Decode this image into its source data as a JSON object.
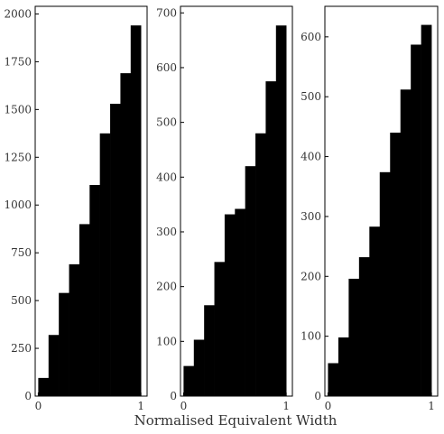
{
  "chart_data": [
    {
      "type": "bar",
      "bin_edges": [
        0,
        0.1,
        0.2,
        0.3,
        0.4,
        0.5,
        0.6,
        0.7,
        0.8,
        0.9,
        1.0
      ],
      "values": [
        95,
        320,
        540,
        690,
        900,
        1105,
        1375,
        1530,
        1690,
        1940
      ],
      "ylim": [
        0,
        2040
      ],
      "xlim": [
        -0.03,
        1.06
      ],
      "yticks": [
        0,
        250,
        500,
        750,
        1000,
        1250,
        1500,
        1750,
        2000
      ],
      "xticks": [
        0,
        1
      ],
      "bar_color": "#000000"
    },
    {
      "type": "bar",
      "bin_edges": [
        0,
        0.1,
        0.2,
        0.3,
        0.4,
        0.5,
        0.6,
        0.7,
        0.8,
        0.9,
        1.0
      ],
      "values": [
        55,
        103,
        166,
        245,
        332,
        342,
        420,
        480,
        575,
        677
      ],
      "ylim": [
        0,
        712
      ],
      "xlim": [
        -0.03,
        1.06
      ],
      "yticks": [
        0,
        100,
        200,
        300,
        400,
        500,
        600,
        700
      ],
      "xticks": [
        0,
        1
      ],
      "bar_color": "#000000"
    },
    {
      "type": "bar",
      "bin_edges": [
        0,
        0.1,
        0.2,
        0.3,
        0.4,
        0.5,
        0.6,
        0.7,
        0.8,
        0.9,
        1.0
      ],
      "values": [
        55,
        98,
        196,
        232,
        283,
        374,
        440,
        512,
        587,
        620
      ],
      "ylim": [
        0,
        651
      ],
      "xlim": [
        -0.03,
        1.06
      ],
      "yticks": [
        0,
        100,
        200,
        300,
        400,
        500,
        600
      ],
      "xticks": [
        0,
        1
      ],
      "bar_color": "#000000"
    }
  ],
  "xlabel": "Normalised Equivalent Width"
}
